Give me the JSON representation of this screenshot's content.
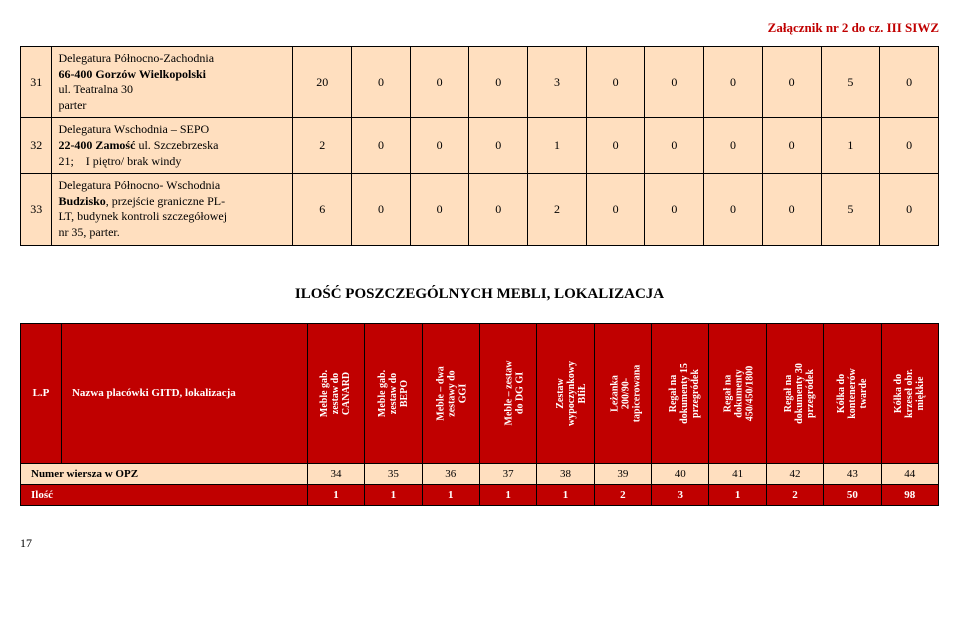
{
  "header": {
    "attachment": "Załącznik nr 2 do cz. III SIWZ"
  },
  "table1": {
    "rows": [
      {
        "num": "31",
        "desc_html": "Delegatura Północno-Zachodnia<br><span class=\"bold\">66-400 Gorzów Wielkopolski</span><br>ul. Teatralna 30<br>parter",
        "values": [
          "20",
          "0",
          "0",
          "0",
          "3",
          "0",
          "0",
          "0",
          "0",
          "5",
          "0"
        ]
      },
      {
        "num": "32",
        "desc_html": "Delegatura Wschodnia – SEPO<br><span class=\"bold\">22-400 Zamość</span> ul. Szczebrzeska<br>21;&nbsp;&nbsp;&nbsp;&nbsp;I piętro/ brak windy",
        "values": [
          "2",
          "0",
          "0",
          "0",
          "1",
          "0",
          "0",
          "0",
          "0",
          "1",
          "0"
        ]
      },
      {
        "num": "33",
        "desc_html": "Delegatura Północno- Wschodnia<br><span class=\"bold\">Budzisko</span>, przejście graniczne PL-<br>LT, budynek kontroli szczegółowej<br>nr 35, parter.",
        "values": [
          "6",
          "0",
          "0",
          "0",
          "2",
          "0",
          "0",
          "0",
          "0",
          "5",
          "0"
        ]
      }
    ]
  },
  "section_title": "ILOŚĆ POSZCZEGÓLNYCH MEBLI, LOKALIZACJA",
  "table2": {
    "lp_label": "L.P",
    "name_label": "Nazwa placówki GITD, lokalizacja",
    "columns": [
      "Meble gab.<br>zestaw do<br>CANARD",
      "Meble gab.<br>zestaw do<br>BEPO",
      "Meble – dwa<br>zestawy do<br>GGI",
      "Meble – zestaw<br>do DG GI",
      "Zestaw<br>wypoczynkowy<br>BIiŁ",
      "Leżanka<br>200/90-<br>tapicerowana",
      "Regał na<br>dokumenty 15<br>przegródek",
      "Regał na<br>dokumenty<br>450/450/1800",
      "Regał na<br>dokumenty 30<br>przegródek",
      "Kółka do<br>kontenerów<br>twarde",
      "Kółka do<br>krzeseł obr.<br>miękkie"
    ],
    "numrow_label": "Numer wiersza w OPZ",
    "numrow_values": [
      "34",
      "35",
      "36",
      "37",
      "38",
      "39",
      "40",
      "41",
      "42",
      "43",
      "44"
    ],
    "ilosc_label": "Ilość",
    "ilosc_values": [
      "1",
      "1",
      "1",
      "1",
      "1",
      "2",
      "3",
      "1",
      "2",
      "50",
      "98"
    ]
  },
  "page_number": "17"
}
